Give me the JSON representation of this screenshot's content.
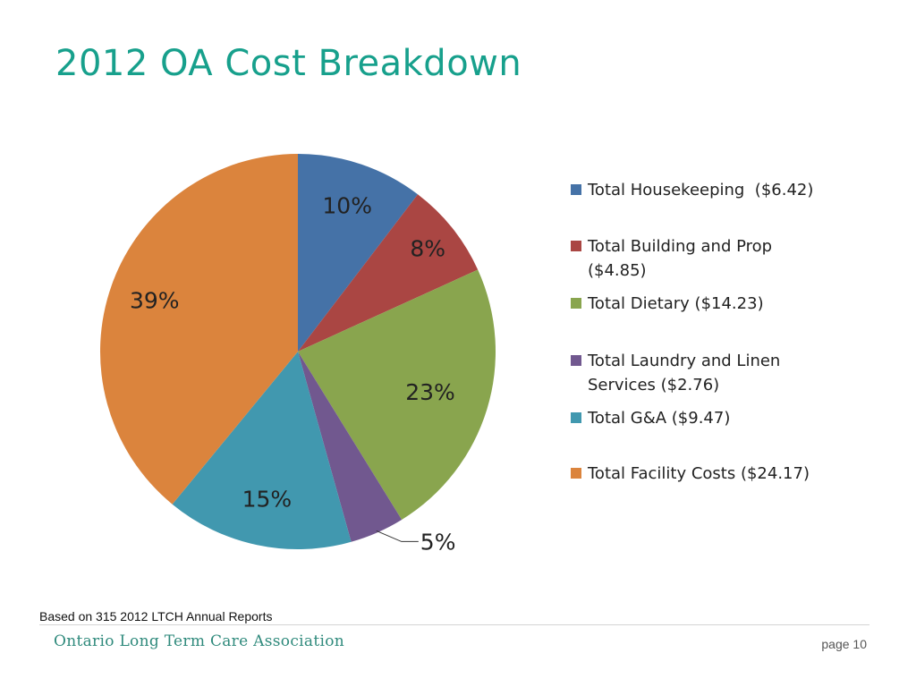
{
  "slide": {
    "title": "2012 OA Cost Breakdown",
    "source_note": "Based on 315 2012 LTCH Annual Reports",
    "organization": "Ontario Long Term Care Association",
    "page_label": "page 10"
  },
  "chart_data": {
    "type": "pie",
    "start_angle_deg": 0,
    "direction": "clockwise",
    "legend_position": "right",
    "slices": [
      {
        "label_lines": [
          "Total Housekeeping  ($6.42)"
        ],
        "value": 6.42,
        "pct_label": "10%",
        "color": "#4572a7"
      },
      {
        "label_lines": [
          "Total Building and Prop",
          "($4.85)"
        ],
        "value": 4.85,
        "pct_label": "8%",
        "color": "#aa4643"
      },
      {
        "label_lines": [
          "Total Dietary ($14.23)"
        ],
        "value": 14.23,
        "pct_label": "23%",
        "color": "#89a54e"
      },
      {
        "label_lines": [
          "Total Laundry and Linen",
          "Services ($2.76)"
        ],
        "value": 2.76,
        "pct_label": "5%",
        "color": "#71588f"
      },
      {
        "label_lines": [
          "Total G&A ($9.47)"
        ],
        "value": 9.47,
        "pct_label": "15%",
        "color": "#4198af"
      },
      {
        "label_lines": [
          "Total Facility Costs ($24.17)"
        ],
        "value": 24.17,
        "pct_label": "39%",
        "color": "#db843d"
      }
    ]
  }
}
